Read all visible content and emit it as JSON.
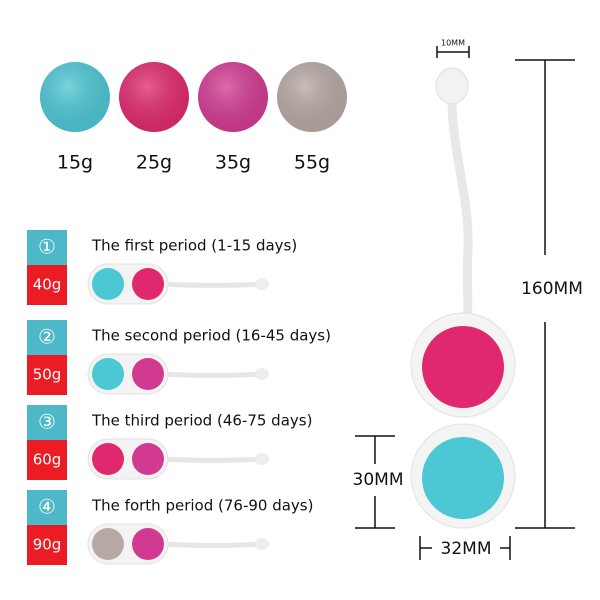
{
  "balls": [
    {
      "weight": "15g"
    },
    {
      "weight": "25g"
    },
    {
      "weight": "35g"
    },
    {
      "weight": "55g"
    }
  ],
  "periods": [
    {
      "number": "①",
      "weight": "40g",
      "label": "The first period (1-15 days)"
    },
    {
      "number": "②",
      "weight": "50g",
      "label": "The second period (16-45 days)"
    },
    {
      "number": "③",
      "weight": "60g",
      "label": "The third period (46-75 days)"
    },
    {
      "number": "④",
      "weight": "90g",
      "label": "The forth period (76-90 days)"
    }
  ],
  "dimensions": {
    "top_width": "10MM",
    "length": "160MM",
    "height": "30MM",
    "width": "32MM"
  }
}
